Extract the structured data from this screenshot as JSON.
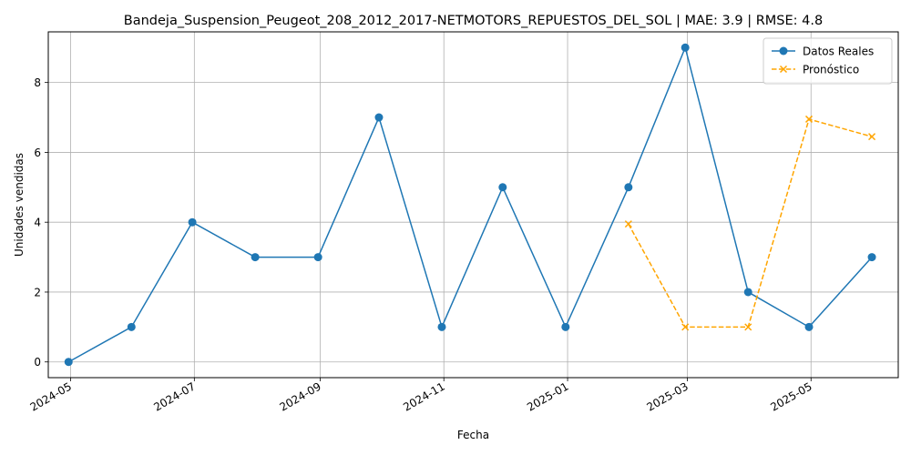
{
  "chart_data": {
    "type": "line",
    "title": "Bandeja_Suspension_Peugeot_208_2012_2017-NETMOTORS_REPUESTOS_DEL_SOL | MAE: 3.9 | RMSE: 4.8",
    "xlabel": "Fecha",
    "ylabel": "Unidades vendidas",
    "ylim": [
      -0.45,
      9.45
    ],
    "xlim": [
      "2024-04-20",
      "2025-06-13"
    ],
    "yticks": [
      0,
      2,
      4,
      6,
      8
    ],
    "xticks": [
      "2024-05",
      "2024-07",
      "2024-09",
      "2024-11",
      "2025-01",
      "2025-03",
      "2025-05"
    ],
    "grid": true,
    "legend_position": "top-right",
    "series": [
      {
        "name": "Datos Reales",
        "color": "#1f77b4",
        "line_style": "solid",
        "marker": "circle",
        "x": [
          "2024-04-30",
          "2024-05-31",
          "2024-06-30",
          "2024-07-31",
          "2024-08-31",
          "2024-09-30",
          "2024-10-31",
          "2024-11-30",
          "2024-12-31",
          "2025-01-31",
          "2025-02-28",
          "2025-03-31",
          "2025-04-30",
          "2025-05-31"
        ],
        "values": [
          0,
          1,
          4,
          3,
          3,
          7,
          1,
          5,
          1,
          5,
          9,
          2,
          1,
          3
        ]
      },
      {
        "name": "Pronóstico",
        "color": "#ffa500",
        "line_style": "dashed",
        "marker": "x",
        "x": [
          "2025-01-31",
          "2025-02-28",
          "2025-03-31",
          "2025-04-30",
          "2025-05-31"
        ],
        "values": [
          3.95,
          1.0,
          1.0,
          6.95,
          6.45
        ]
      }
    ]
  }
}
